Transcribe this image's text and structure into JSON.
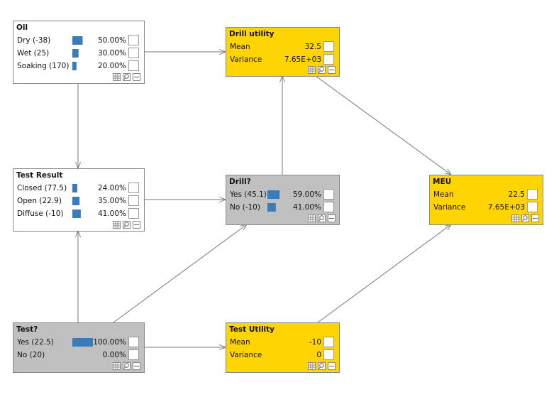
{
  "nodes": [
    {
      "title": "Oil",
      "color": "#ffffff",
      "rows": [
        {
          "label": "Dry (-38)",
          "percent": 50,
          "value": "50.00%"
        },
        {
          "label": "Wet (25)",
          "percent": 30,
          "value": "30.00%"
        },
        {
          "label": "Soaking (170)",
          "percent": 20,
          "value": "20.00%"
        }
      ]
    },
    {
      "title": "Drill utility",
      "color": "#ffd400",
      "rows": [
        {
          "label": "Mean",
          "value": "32.5"
        },
        {
          "label": "Variance",
          "value": "7.65E+03"
        }
      ]
    },
    {
      "title": "Test Result",
      "color": "#ffffff",
      "rows": [
        {
          "label": "Closed (77.5)",
          "percent": 24,
          "value": "24.00%"
        },
        {
          "label": "Open (22.9)",
          "percent": 35,
          "value": "35.00%"
        },
        {
          "label": "Diffuse (-10)",
          "percent": 41,
          "value": "41.00%"
        }
      ]
    },
    {
      "title": "Drill?",
      "color": "#c0c0c0",
      "rows": [
        {
          "label": "Yes (45.1)",
          "percent": 59,
          "value": "59.00%"
        },
        {
          "label": "No (-10)",
          "percent": 41,
          "value": "41.00%"
        }
      ]
    },
    {
      "title": "MEU",
      "color": "#ffd400",
      "rows": [
        {
          "label": "Mean",
          "value": "22.5"
        },
        {
          "label": "Variance",
          "value": "7.65E+03"
        }
      ]
    },
    {
      "title": "Test?",
      "color": "#c0c0c0",
      "rows": [
        {
          "label": "Yes (22.5)",
          "percent": 100,
          "value": "100.00%"
        },
        {
          "label": "No (20)",
          "percent": 0,
          "value": "0.00%"
        }
      ]
    },
    {
      "title": "Test Utility",
      "color": "#ffd400",
      "rows": [
        {
          "label": "Mean",
          "value": "-10"
        },
        {
          "label": "Variance",
          "value": "0"
        }
      ]
    }
  ]
}
